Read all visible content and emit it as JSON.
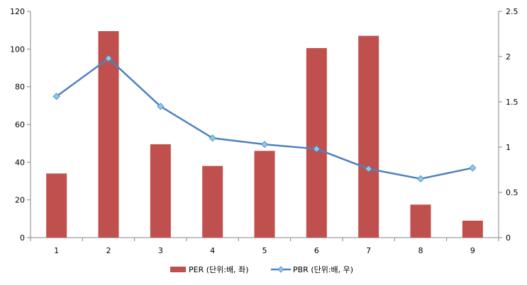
{
  "chart_data": {
    "type": "bar",
    "categories": [
      "1",
      "2",
      "3",
      "4",
      "5",
      "6",
      "7",
      "8",
      "9"
    ],
    "series": [
      {
        "name": "PER (단위:배, 좌)",
        "type": "bar",
        "axis": "left",
        "color": "#C0504D",
        "values": [
          34,
          109.5,
          49.5,
          38,
          46,
          100.5,
          107,
          17.5,
          9
        ]
      },
      {
        "name": "PBR (단위:배, 우)",
        "type": "line",
        "axis": "right",
        "color": "#4F81BD",
        "marker_color": "#8ACCE8",
        "values": [
          1.56,
          1.98,
          1.45,
          1.1,
          1.03,
          0.98,
          0.76,
          0.65,
          0.77
        ]
      }
    ],
    "y_left": {
      "min": 0,
      "max": 120,
      "ticks": [
        "0",
        "20",
        "40",
        "60",
        "80",
        "100",
        "120"
      ]
    },
    "y_right": {
      "min": 0,
      "max": 2.5,
      "ticks": [
        "0",
        "0.5",
        "1",
        "1.5",
        "2",
        "2.5"
      ]
    },
    "grid": false,
    "legend": "bottom",
    "title": "",
    "xlabel": "",
    "ylabel": ""
  }
}
